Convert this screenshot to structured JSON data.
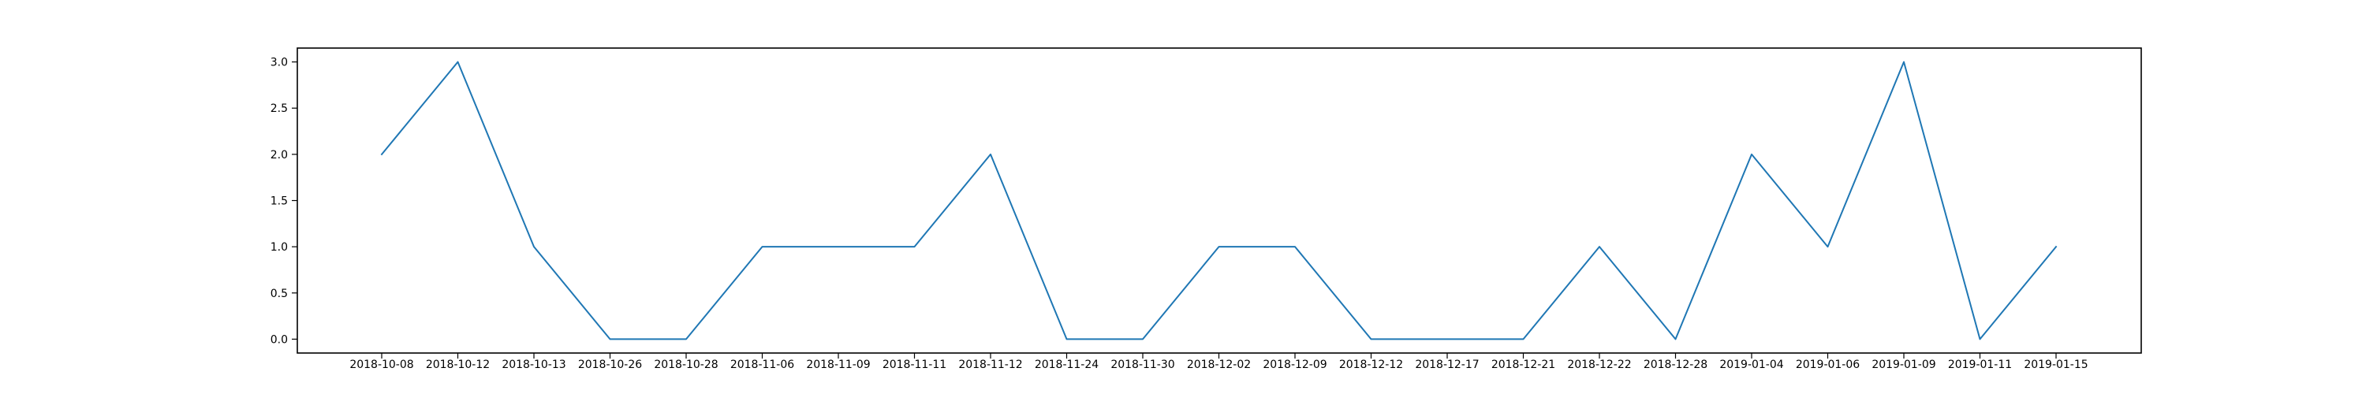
{
  "chart_data": {
    "type": "line",
    "title": "",
    "xlabel": "",
    "ylabel": "",
    "x": [
      "2018-10-08",
      "2018-10-12",
      "2018-10-13",
      "2018-10-26",
      "2018-10-28",
      "2018-11-06",
      "2018-11-09",
      "2018-11-11",
      "2018-11-12",
      "2018-11-24",
      "2018-11-30",
      "2018-12-02",
      "2018-12-09",
      "2018-12-12",
      "2018-12-17",
      "2018-12-21",
      "2018-12-22",
      "2018-12-28",
      "2019-01-04",
      "2019-01-06",
      "2019-01-09",
      "2019-01-11",
      "2019-01-15"
    ],
    "series": [
      {
        "values": [
          2,
          3,
          1,
          0,
          0,
          1,
          1,
          1,
          2,
          0,
          0,
          1,
          1,
          0,
          0,
          0,
          1,
          0,
          2,
          1,
          3,
          0,
          1
        ],
        "color": "#1f77b4"
      }
    ],
    "ylim": [
      -0.15,
      3.15
    ],
    "yticks": [
      "0.0",
      "0.5",
      "1.0",
      "1.5",
      "2.0",
      "2.5",
      "3.0"
    ],
    "grid": false,
    "legend": "none"
  }
}
